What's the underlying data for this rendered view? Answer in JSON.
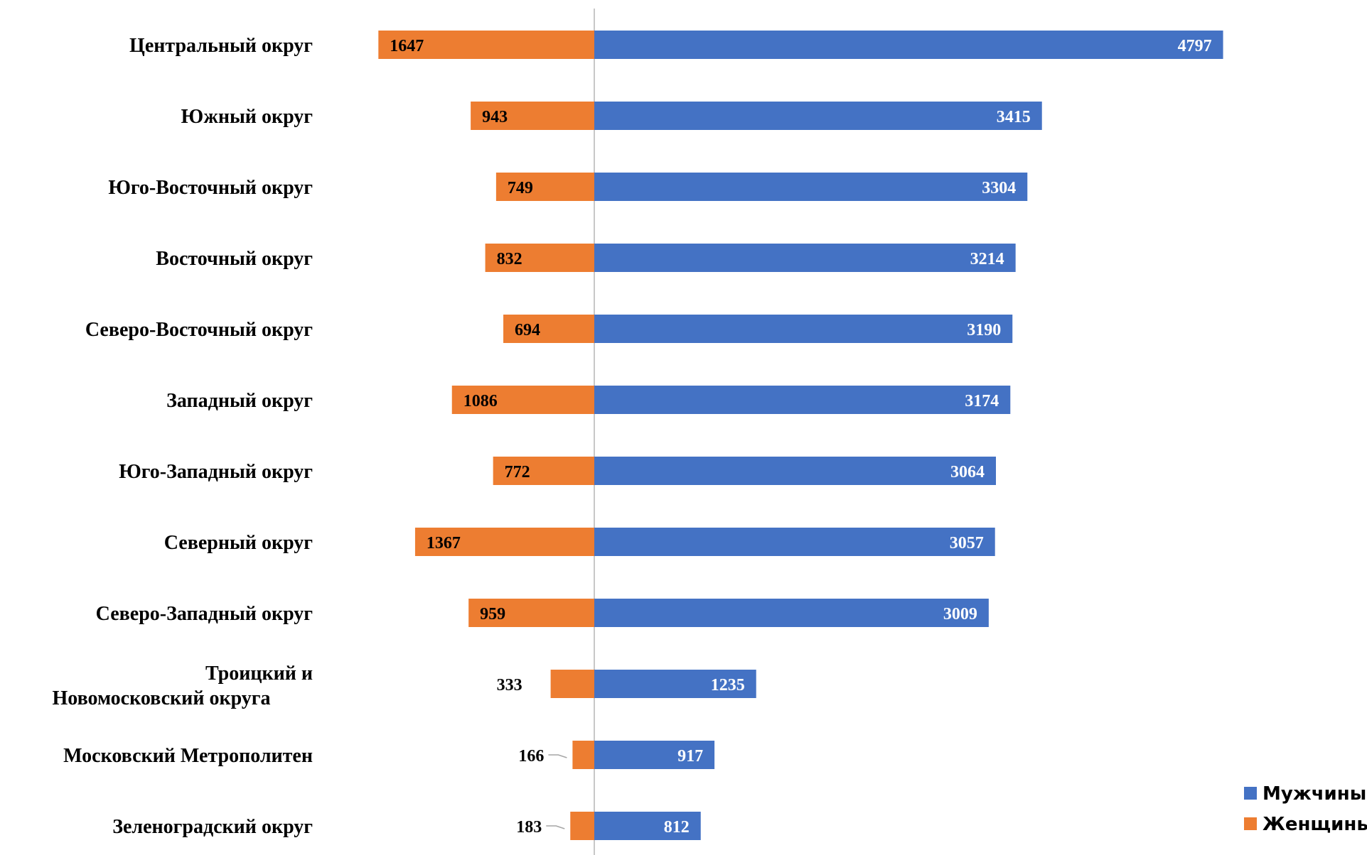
{
  "chart_data": {
    "type": "bar",
    "orientation": "horizontal",
    "layout": "diverging",
    "categories": [
      "Центральный округ",
      "Южный округ",
      "Юго-Восточный округ",
      "Восточный округ",
      "Северо-Восточный округ",
      "Западный округ",
      "Юго-Западный округ",
      "Северный округ",
      "Северо-Западный округ",
      "Троицкий и Новомосковский округа",
      "Московский Метрополитен",
      "Зеленоградский округ"
    ],
    "series": [
      {
        "name": "Мужчины",
        "color": "#4472C4",
        "values": [
          4797,
          3415,
          3304,
          3214,
          3190,
          3174,
          3064,
          3057,
          3009,
          1235,
          917,
          812
        ]
      },
      {
        "name": "Женщины",
        "color": "#ED7D31",
        "values": [
          1647,
          943,
          749,
          832,
          694,
          1086,
          772,
          1367,
          959,
          333,
          166,
          183
        ]
      }
    ],
    "data_labels": true,
    "xlabel": "",
    "ylabel": "",
    "legend": "bottom-right",
    "grid": false
  }
}
